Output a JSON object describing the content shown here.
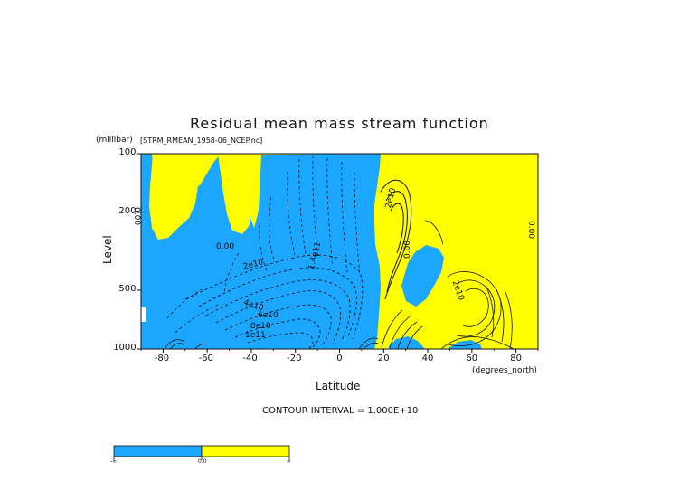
{
  "chart_data": {
    "type": "contour",
    "title": "Residual mean mass stream function",
    "dataset_label": "[STRM_RMEAN_1958-06_NCEP.nc]",
    "y_units": "(millibar)",
    "x_units": "(degrees_north)",
    "xlabel": "Latitude",
    "ylabel": "Level",
    "contour_interval_text": "CONTOUR INTERVAL = 1.000E+10",
    "x_range": [
      -90,
      90
    ],
    "y_range": [
      1000,
      100
    ],
    "x_ticks": [
      -80,
      -60,
      -40,
      -20,
      0,
      20,
      40,
      60,
      80
    ],
    "y_ticks": [
      100,
      200,
      500,
      1000
    ],
    "fill_colors": {
      "negative": "#1ba6ff",
      "positive": "#ffff00",
      "background": "#ffffff"
    },
    "colorbar_labels": [
      "-∞",
      "0.0",
      "∞"
    ],
    "contour_labels": [
      "0.00",
      "2e10",
      "1.4e11",
      "4e10",
      "6e10",
      "8e10",
      "1e11",
      "2e10",
      "0.00",
      "2e10",
      "0.00",
      "0.00"
    ]
  }
}
